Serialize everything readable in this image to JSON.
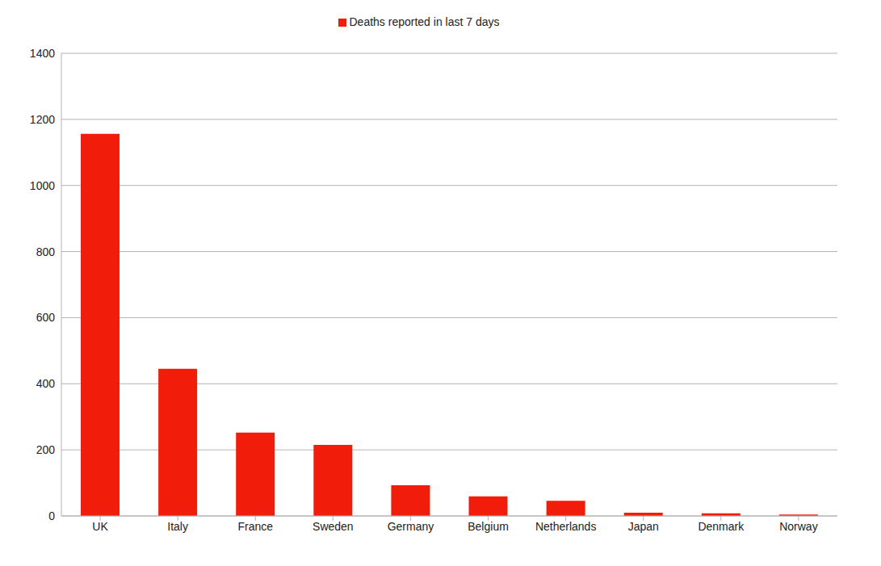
{
  "chart_data": {
    "type": "bar",
    "categories": [
      "UK",
      "Italy",
      "France",
      "Sweden",
      "Germany",
      "Belgium",
      "Netherlands",
      "Japan",
      "Denmark",
      "Norway"
    ],
    "series": [
      {
        "name": "Deaths reported in last 7 days",
        "color": "#f21c0a",
        "values": [
          1156,
          445,
          252,
          215,
          93,
          59,
          46,
          10,
          8,
          4
        ]
      }
    ],
    "ylim": [
      0,
      1400
    ],
    "yticks": [
      0,
      200,
      400,
      600,
      800,
      1000,
      1200,
      1400
    ],
    "grid": true,
    "legend": "top"
  }
}
